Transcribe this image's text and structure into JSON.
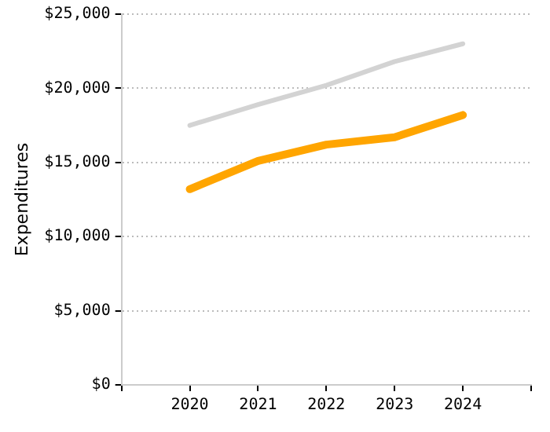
{
  "chart_data": {
    "type": "line",
    "ylabel": "Expenditures",
    "x": [
      2020,
      2021,
      2022,
      2023,
      2024
    ],
    "series": [
      {
        "color": "#d3d3d3",
        "values": [
          17500,
          18900,
          20200,
          21800,
          23000
        ]
      },
      {
        "color": "#ffa500",
        "values": [
          13200,
          15100,
          16200,
          16700,
          18200
        ]
      }
    ],
    "xlim": [
      2019,
      2025
    ],
    "xticks": [
      {
        "value": 2019,
        "label": null
      },
      2020,
      2021,
      2022,
      2023,
      2024,
      {
        "value": 2025,
        "label": null
      }
    ],
    "ylim": [
      0,
      25000
    ],
    "yticks": [
      {
        "value": 0,
        "label": "$0"
      },
      {
        "value": 5000,
        "label": "$5,000"
      },
      {
        "value": 10000,
        "label": "$10,000"
      },
      {
        "value": 15000,
        "label": "$15,000"
      },
      {
        "value": 20000,
        "label": "$20,000"
      },
      {
        "value": 25000,
        "label": "$25,000"
      }
    ],
    "grid": "y",
    "legend": false,
    "marker": "none",
    "line_style": "solid"
  }
}
